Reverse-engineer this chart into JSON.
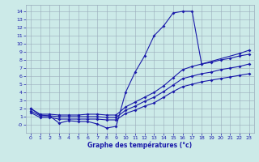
{
  "xlabel": "Graphe des températures (°c)",
  "xlim": [
    -0.5,
    23.5
  ],
  "ylim": [
    -1.0,
    14.8
  ],
  "xticks": [
    0,
    1,
    2,
    3,
    4,
    5,
    6,
    7,
    8,
    9,
    10,
    11,
    12,
    13,
    14,
    15,
    16,
    17,
    18,
    19,
    20,
    21,
    22,
    23
  ],
  "yticks": [
    0,
    1,
    2,
    3,
    4,
    5,
    6,
    7,
    8,
    9,
    10,
    11,
    12,
    13,
    14
  ],
  "ytick_labels": [
    "-0",
    "1",
    "2",
    "3",
    "4",
    "5",
    "6",
    "7",
    "8",
    "9",
    "10",
    "11",
    "12",
    "13",
    "14"
  ],
  "bg_color": "#cceae8",
  "grid_color": "#99aabb",
  "line_color": "#1a1aaa",
  "curve_main_x": [
    0,
    1,
    2,
    3,
    4,
    5,
    6,
    7,
    8,
    9,
    10,
    11,
    12,
    13,
    14,
    15,
    16,
    17,
    18,
    22,
    23
  ],
  "curve_main_y": [
    2.0,
    1.2,
    1.1,
    0.2,
    0.5,
    0.4,
    0.4,
    0.1,
    -0.4,
    -0.2,
    4.0,
    6.5,
    8.5,
    11.0,
    12.2,
    13.8,
    14.0,
    14.0,
    7.5,
    8.8,
    9.2
  ],
  "curve_top_x": [
    0,
    1,
    2,
    3,
    4,
    5,
    6,
    7,
    8,
    9,
    10,
    11,
    12,
    13,
    14,
    15,
    16,
    17,
    18,
    19,
    20,
    21,
    22,
    23
  ],
  "curve_top_y": [
    2.0,
    1.3,
    1.3,
    1.2,
    1.2,
    1.2,
    1.3,
    1.3,
    1.2,
    1.2,
    2.2,
    2.8,
    3.4,
    4.0,
    4.8,
    5.8,
    6.8,
    7.2,
    7.5,
    7.7,
    8.0,
    8.2,
    8.5,
    8.7
  ],
  "curve_mid_x": [
    0,
    1,
    2,
    3,
    4,
    5,
    6,
    7,
    8,
    9,
    10,
    11,
    12,
    13,
    14,
    15,
    16,
    17,
    18,
    19,
    20,
    21,
    22,
    23
  ],
  "curve_mid_y": [
    1.7,
    1.1,
    1.1,
    1.0,
    1.0,
    1.0,
    1.0,
    1.0,
    0.9,
    0.9,
    1.8,
    2.3,
    2.9,
    3.4,
    4.1,
    4.9,
    5.7,
    6.0,
    6.3,
    6.5,
    6.8,
    7.0,
    7.2,
    7.5
  ],
  "curve_bot_x": [
    0,
    1,
    2,
    3,
    4,
    5,
    6,
    7,
    8,
    9,
    10,
    11,
    12,
    13,
    14,
    15,
    16,
    17,
    18,
    19,
    20,
    21,
    22,
    23
  ],
  "curve_bot_y": [
    1.5,
    0.9,
    0.9,
    0.7,
    0.7,
    0.7,
    0.7,
    0.7,
    0.6,
    0.6,
    1.4,
    1.8,
    2.3,
    2.7,
    3.4,
    4.1,
    4.7,
    5.0,
    5.3,
    5.5,
    5.7,
    5.9,
    6.1,
    6.3
  ]
}
